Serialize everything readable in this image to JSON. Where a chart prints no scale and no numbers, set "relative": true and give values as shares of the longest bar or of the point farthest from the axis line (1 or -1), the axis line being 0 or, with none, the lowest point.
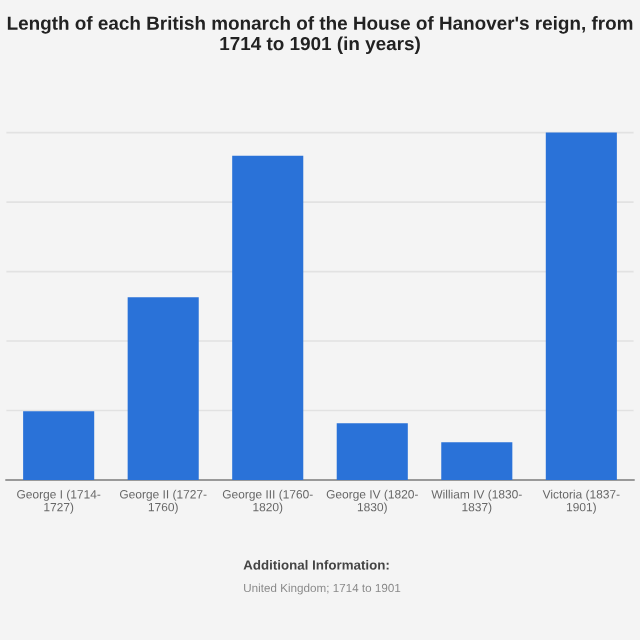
{
  "chart_data": {
    "type": "bar",
    "title": "Length of each British monarch of the House of Hanover's reign, from 1714 to 1901 (in years)",
    "categories": [
      "George I (1714-\n1727)",
      "George II (1727-\n1760)",
      "George III (1760-\n1820)",
      "George IV (1820-\n1830)",
      "William IV (1830-\n1837)",
      "Victoria (1837-\n1901)"
    ],
    "values": [
      0.198,
      0.526,
      0.933,
      0.163,
      0.109,
      1
    ],
    "relative": true,
    "color": "#2a72d8",
    "grid": "y",
    "annotations": [
      "Additional Information:",
      "United Kingdom; 1714 to 1901"
    ]
  }
}
